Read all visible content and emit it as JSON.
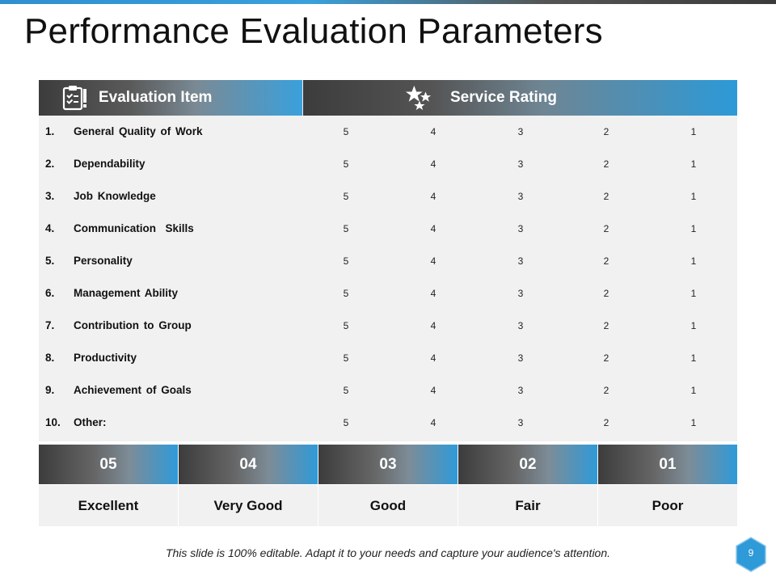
{
  "title": "Performance Evaluation Parameters",
  "table": {
    "headers": {
      "item": "Evaluation Item",
      "item_icon": "clipboard-check-icon",
      "rating": "Service Rating",
      "rating_icon": "stars-icon"
    },
    "rows": [
      {
        "num": "1.",
        "label": "General Quality of Work",
        "ratings": [
          "5",
          "4",
          "3",
          "2",
          "1"
        ]
      },
      {
        "num": "2.",
        "label": "Dependability",
        "ratings": [
          "5",
          "4",
          "3",
          "2",
          "1"
        ]
      },
      {
        "num": "3.",
        "label": "Job Knowledge",
        "ratings": [
          "5",
          "4",
          "3",
          "2",
          "1"
        ]
      },
      {
        "num": "4.",
        "label": "Communication  Skills",
        "ratings": [
          "5",
          "4",
          "3",
          "2",
          "1"
        ]
      },
      {
        "num": "5.",
        "label": "Personality",
        "ratings": [
          "5",
          "4",
          "3",
          "2",
          "1"
        ]
      },
      {
        "num": "6.",
        "label": "Management Ability",
        "ratings": [
          "5",
          "4",
          "3",
          "2",
          "1"
        ]
      },
      {
        "num": "7.",
        "label": "Contribution to Group",
        "ratings": [
          "5",
          "4",
          "3",
          "2",
          "1"
        ]
      },
      {
        "num": "8.",
        "label": "Productivity",
        "ratings": [
          "5",
          "4",
          "3",
          "2",
          "1"
        ]
      },
      {
        "num": "9.",
        "label": "Achievement of Goals",
        "ratings": [
          "5",
          "4",
          "3",
          "2",
          "1"
        ]
      },
      {
        "num": "10.",
        "label": "Other:",
        "ratings": [
          "5",
          "4",
          "3",
          "2",
          "1"
        ]
      }
    ]
  },
  "legend": [
    {
      "code": "05",
      "label": "Excellent"
    },
    {
      "code": "04",
      "label": "Very Good"
    },
    {
      "code": "03",
      "label": "Good"
    },
    {
      "code": "02",
      "label": "Fair"
    },
    {
      "code": "01",
      "label": "Poor"
    }
  ],
  "footer": "This slide is 100% editable. Adapt it to your needs and capture your audience's attention.",
  "page_number": "9",
  "colors": {
    "accent": "#2f9ad8",
    "dark": "#3c3c3c"
  }
}
